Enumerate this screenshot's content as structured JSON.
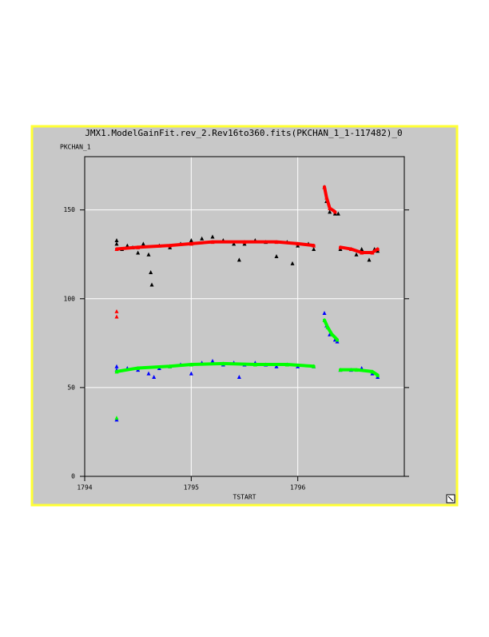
{
  "chart_data": {
    "type": "scatter",
    "title": "JMX1.ModelGainFit.rev_2.Rev16to360.fits(PKCHAN_1_1-117482)_0",
    "y_label": "PKCHAN_1",
    "x_label": "TSTART",
    "xlim": [
      1794,
      1797
    ],
    "ylim": [
      0,
      180
    ],
    "xticks": [
      1794,
      1795,
      1796
    ],
    "yticks": [
      0,
      50,
      100,
      150
    ],
    "grid": true,
    "series": [
      {
        "color": "#000000",
        "line": false,
        "x": [
          1794.3,
          1794.3,
          1794.35,
          1794.4,
          1794.45,
          1794.5,
          1794.55,
          1794.6,
          1794.62,
          1794.63,
          1794.7,
          1794.8,
          1794.9,
          1795.0,
          1795.1,
          1795.2,
          1795.3,
          1795.4,
          1795.45,
          1795.5,
          1795.6,
          1795.7,
          1795.8,
          1795.9,
          1795.95,
          1796.0,
          1796.1,
          1796.15,
          1796.25,
          1796.27,
          1796.3,
          1796.35,
          1796.38,
          1796.4,
          1796.5,
          1796.55,
          1796.6,
          1796.67,
          1796.72,
          1796.75
        ],
        "values": [
          133,
          131,
          128,
          130,
          129,
          126,
          131,
          125,
          115,
          108,
          130,
          129,
          131,
          133,
          134,
          135,
          133,
          131,
          122,
          131,
          133,
          132,
          124,
          132,
          120,
          130,
          131,
          128,
          163,
          155,
          149,
          148,
          148,
          128,
          128,
          125,
          128,
          122,
          128,
          127
        ]
      },
      {
        "color": "#ff0000",
        "line": true,
        "x": [
          1794.3,
          null,
          1794.3,
          null,
          1794.3,
          1794.5,
          1794.8,
          1795.0,
          1795.2,
          1795.5,
          1795.8,
          1796.0,
          1796.15,
          null,
          1796.25,
          1796.27,
          1796.3,
          1796.35,
          null,
          1796.4,
          1796.5,
          1796.6,
          1796.7,
          1796.75
        ],
        "values": [
          93,
          null,
          90,
          null,
          128,
          129,
          130,
          131,
          132,
          132,
          132,
          131,
          130,
          null,
          163,
          157,
          151,
          149,
          null,
          129,
          128,
          126,
          126,
          128
        ]
      },
      {
        "color": "#0000ff",
        "line": false,
        "x": [
          1794.3,
          1794.3,
          1794.3,
          1794.4,
          1794.5,
          1794.6,
          1794.65,
          1794.7,
          1794.8,
          1794.9,
          1795.0,
          1795.1,
          1795.2,
          1795.3,
          1795.4,
          1795.45,
          1795.5,
          1795.6,
          1795.7,
          1795.8,
          1795.9,
          1796.0,
          1796.15,
          1796.25,
          1796.27,
          1796.3,
          1796.35,
          1796.37,
          1796.4,
          1796.5,
          1796.6,
          1796.7,
          1796.75
        ],
        "values": [
          62,
          60,
          32,
          61,
          60,
          58,
          56,
          61,
          62,
          63,
          58,
          64,
          65,
          63,
          64,
          56,
          63,
          64,
          63,
          62,
          63,
          62,
          62,
          92,
          85,
          80,
          77,
          76,
          60,
          60,
          61,
          58,
          56
        ]
      },
      {
        "color": "#00ff00",
        "line": true,
        "x": [
          1794.3,
          null,
          1794.3,
          1794.5,
          1794.8,
          1795.0,
          1795.3,
          1795.6,
          1795.9,
          1796.15,
          null,
          1796.25,
          1796.28,
          1796.32,
          1796.37,
          null,
          1796.4,
          1796.55,
          1796.7,
          1796.75
        ],
        "values": [
          33,
          null,
          59,
          61,
          62,
          63,
          63.5,
          63,
          63,
          62,
          null,
          88,
          84,
          80,
          77,
          null,
          60,
          60,
          59,
          57
        ]
      }
    ]
  }
}
